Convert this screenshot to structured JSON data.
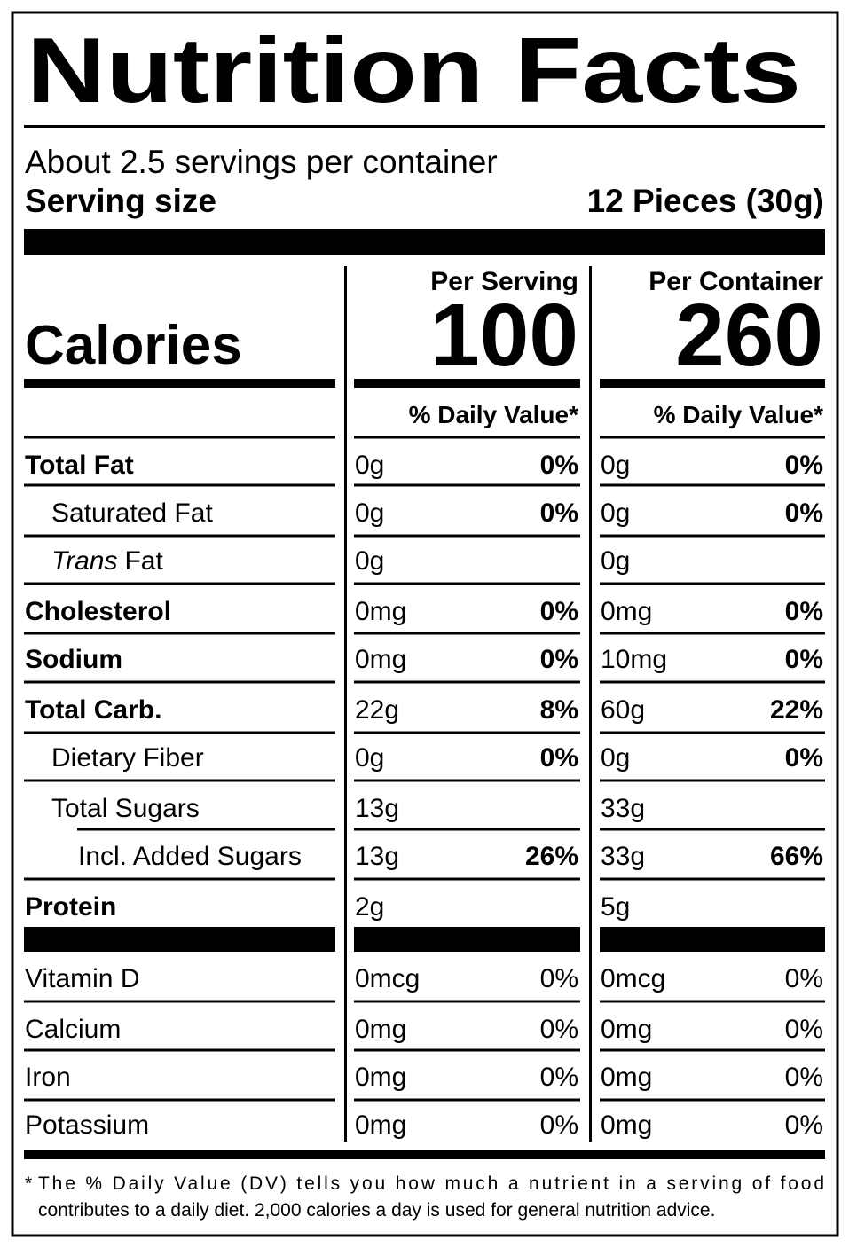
{
  "header": {
    "title": "Nutrition Facts",
    "servings": "About 2.5 servings per container",
    "serving_size_label": "Serving size",
    "serving_size": "12 Pieces (30g)"
  },
  "calories": {
    "label": "Calories",
    "columns": [
      {
        "heading": "Per Serving",
        "value": 100
      },
      {
        "heading": "Per Container",
        "value": 260
      }
    ]
  },
  "dv_heading": "% Daily Value*",
  "nutrients": [
    {
      "name": "Total Fat",
      "bold": true,
      "indent": 0,
      "amounts": [
        "0g",
        "0g"
      ],
      "dv": [
        "0%",
        "0%"
      ]
    },
    {
      "name": "Saturated Fat",
      "bold": false,
      "indent": 1,
      "amounts": [
        "0g",
        "0g"
      ],
      "dv": [
        "0%",
        "0%"
      ]
    },
    {
      "name_italic": "Trans",
      "name": "Fat",
      "bold": false,
      "indent": 1,
      "amounts": [
        "0g",
        "0g"
      ],
      "dv": [
        null,
        null
      ]
    },
    {
      "name": "Cholesterol",
      "bold": true,
      "indent": 0,
      "amounts": [
        "0mg",
        "0mg"
      ],
      "dv": [
        "0%",
        "0%"
      ]
    },
    {
      "name": "Sodium",
      "bold": true,
      "indent": 0,
      "amounts": [
        "0mg",
        "10mg"
      ],
      "dv": [
        "0%",
        "0%"
      ]
    },
    {
      "name": "Total Carb.",
      "bold": true,
      "indent": 0,
      "amounts": [
        "22g",
        "60g"
      ],
      "dv": [
        "8%",
        "22%"
      ]
    },
    {
      "name": "Dietary Fiber",
      "bold": false,
      "indent": 1,
      "amounts": [
        "0g",
        "0g"
      ],
      "dv": [
        "0%",
        "0%"
      ]
    },
    {
      "name": "Total Sugars",
      "bold": false,
      "indent": 1,
      "amounts": [
        "13g",
        "33g"
      ],
      "dv": [
        null,
        null
      ]
    },
    {
      "name": "Incl. Added Sugars",
      "bold": false,
      "indent": 2,
      "amounts": [
        "13g",
        "33g"
      ],
      "dv": [
        "26%",
        "66%"
      ]
    },
    {
      "name": "Protein",
      "bold": true,
      "indent": 0,
      "amounts": [
        "2g",
        "5g"
      ],
      "dv": [
        null,
        null
      ]
    }
  ],
  "vitamins": [
    {
      "name": "Vitamin D",
      "amounts": [
        "0mcg",
        "0mcg"
      ],
      "dv": [
        "0%",
        "0%"
      ]
    },
    {
      "name": "Calcium",
      "amounts": [
        "0mg",
        "0mg"
      ],
      "dv": [
        "0%",
        "0%"
      ]
    },
    {
      "name": "Iron",
      "amounts": [
        "0mg",
        "0mg"
      ],
      "dv": [
        "0%",
        "0%"
      ]
    },
    {
      "name": "Potassium",
      "amounts": [
        "0mg",
        "0mg"
      ],
      "dv": [
        "0%",
        "0%"
      ]
    }
  ],
  "footnote": {
    "marker": "*",
    "lines": [
      "The % Daily Value (DV) tells you how much a nutrient in a serving of food",
      "contributes to a daily diet. 2,000 calories a day is used for general nutrition advice."
    ]
  }
}
